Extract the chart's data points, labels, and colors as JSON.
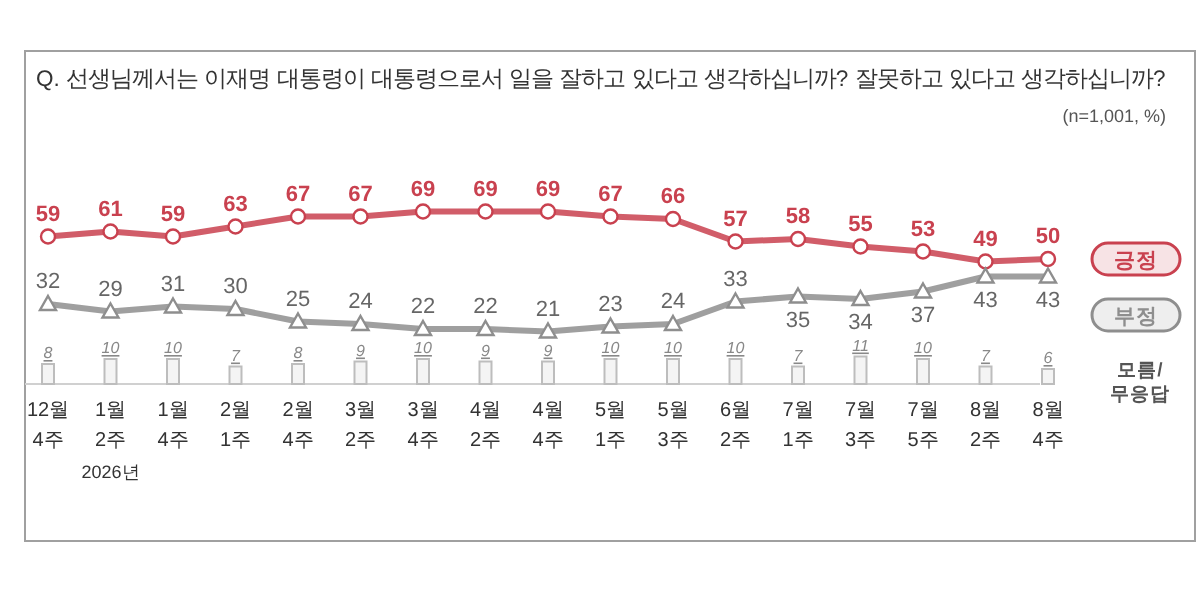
{
  "chart_data": {
    "type": "line",
    "title": "Q. 선생님께서는 이재명 대통령이 대통령으로서 일을 잘하고 있다고 생각하십니까? 잘못하고 있다고 생각하십니까?",
    "subtitle": "(n=1,001, %)",
    "categories": [
      "12월 4주",
      "1월 2주",
      "1월 4주",
      "2월 1주",
      "2월 4주",
      "3월 2주",
      "3월 4주",
      "4월 2주",
      "4월 4주",
      "5월 1주",
      "5월 3주",
      "6월 2주",
      "7월 1주",
      "7월 3주",
      "7월 5주",
      "8월 2주",
      "8월 4주"
    ],
    "series": [
      {
        "name": "긍정",
        "color": "#c9414f",
        "marker": "circle",
        "values": [
          59,
          61,
          59,
          63,
          67,
          67,
          69,
          69,
          69,
          67,
          66,
          57,
          58,
          55,
          53,
          49,
          50
        ]
      },
      {
        "name": "부정",
        "color": "#8e8e8e",
        "marker": "triangle",
        "values": [
          32,
          29,
          31,
          30,
          25,
          24,
          22,
          22,
          21,
          23,
          24,
          33,
          35,
          34,
          37,
          43,
          43
        ]
      },
      {
        "name": "모름/무응답",
        "type": "bar",
        "color": "#bdbdbd",
        "values": [
          8,
          10,
          10,
          7,
          8,
          9,
          10,
          9,
          9,
          10,
          10,
          10,
          7,
          11,
          10,
          7,
          6
        ]
      }
    ],
    "data_labels": true,
    "legend": "right",
    "annotations": [
      "2026년"
    ]
  }
}
